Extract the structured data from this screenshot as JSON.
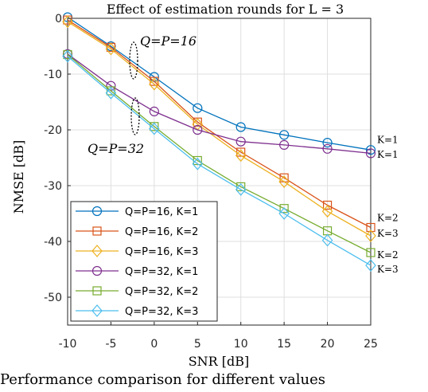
{
  "chart_data": {
    "type": "line",
    "title": "Effect of estimation rounds for L = 3",
    "xlabel": "SNR [dB]",
    "ylabel": "NMSE [dB]",
    "xlim": [
      -10,
      25
    ],
    "ylim": [
      -55,
      0
    ],
    "xticks": [
      -10,
      -5,
      0,
      5,
      10,
      15,
      20,
      25
    ],
    "yticks": [
      0,
      -10,
      -20,
      -30,
      -40,
      -50
    ],
    "grid": true,
    "legend_position": "bottom-left",
    "x": [
      -10,
      -5,
      0,
      5,
      10,
      15,
      20,
      25
    ],
    "series": [
      {
        "name": "Q=P=16, K=1",
        "color": "#0072BD",
        "marker": "circle",
        "values": [
          0.2,
          -5.0,
          -10.5,
          -16.1,
          -19.5,
          -20.9,
          -22.3,
          -23.6
        ]
      },
      {
        "name": "Q=P=16, K=2",
        "color": "#D95319",
        "marker": "square",
        "values": [
          -0.3,
          -5.2,
          -11.3,
          -18.6,
          -24.0,
          -28.6,
          -33.5,
          -37.5
        ]
      },
      {
        "name": "Q=P=16, K=3",
        "color": "#EDB120",
        "marker": "diamond",
        "values": [
          -0.6,
          -5.5,
          -11.8,
          -19.0,
          -24.6,
          -29.3,
          -34.6,
          -39.0
        ]
      },
      {
        "name": "Q=P=32, K=1",
        "color": "#7E2F8E",
        "marker": "circle",
        "values": [
          -6.4,
          -12.1,
          -16.7,
          -20.0,
          -22.1,
          -22.7,
          -23.4,
          -24.2
        ]
      },
      {
        "name": "Q=P=32, K=2",
        "color": "#77AC30",
        "marker": "square",
        "values": [
          -6.5,
          -13.0,
          -19.4,
          -25.5,
          -30.2,
          -34.1,
          -38.1,
          -42.0
        ]
      },
      {
        "name": "Q=P=32, K=3",
        "color": "#4DBEEE",
        "marker": "diamond",
        "values": [
          -6.8,
          -13.4,
          -19.8,
          -26.1,
          -30.7,
          -35.0,
          -39.8,
          -44.3
        ]
      }
    ],
    "annotations": {
      "group16": "Q=P=16",
      "group32": "Q=P=32",
      "k_labels": [
        {
          "text": "K=1",
          "y": -21.8
        },
        {
          "text": "K=1",
          "y": -24.4
        },
        {
          "text": "K=2",
          "y": -35.8
        },
        {
          "text": "K=3",
          "y": -38.6
        },
        {
          "text": "K=2",
          "y": -42.4
        },
        {
          "text": "K=3",
          "y": -45.0
        }
      ]
    }
  },
  "caption": "Performance comparison for different values"
}
